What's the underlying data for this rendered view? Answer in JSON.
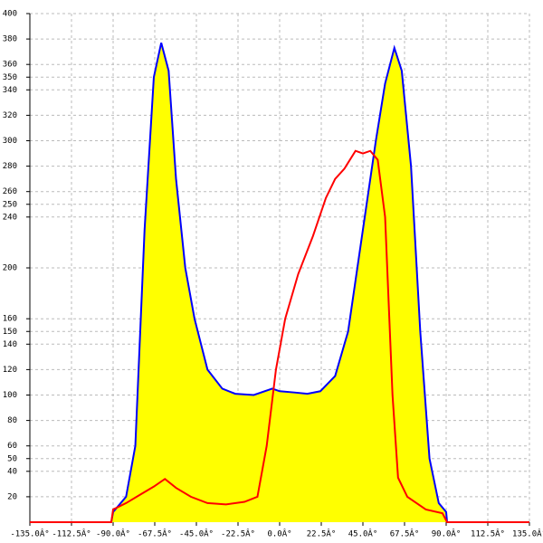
{
  "chart_data": {
    "type": "area",
    "xlim": [
      -135,
      135
    ],
    "ylim": [
      0,
      400
    ],
    "xticks": [
      {
        "value": -135,
        "label": "-135.0Â°"
      },
      {
        "value": -112.5,
        "label": "-112.5Â°"
      },
      {
        "value": -90,
        "label": "-90.0Â°"
      },
      {
        "value": -67.5,
        "label": "-67.5Â°"
      },
      {
        "value": -45,
        "label": "-45.0Â°"
      },
      {
        "value": -22.5,
        "label": "-22.5Â°"
      },
      {
        "value": 0,
        "label": "0.0Â°"
      },
      {
        "value": 22.5,
        "label": "22.5Â°"
      },
      {
        "value": 45,
        "label": "45.0Â°"
      },
      {
        "value": 67.5,
        "label": "67.5Â°"
      },
      {
        "value": 90,
        "label": "90.0Â°"
      },
      {
        "value": 112.5,
        "label": "112.5Â°"
      },
      {
        "value": 135,
        "label": "135.0Â°"
      }
    ],
    "yticks": [
      20,
      40,
      50,
      60,
      80,
      100,
      120,
      140,
      150,
      160,
      200,
      240,
      250,
      260,
      280,
      300,
      320,
      340,
      350,
      360,
      380,
      400
    ],
    "grid": true,
    "series": [
      {
        "color": "#0000ff",
        "fill": "#ffff00",
        "x": [
          -91,
          -90,
          -83,
          -78,
          -73,
          -68,
          -64,
          -60,
          -56,
          -51,
          -46,
          -39,
          -31,
          -24,
          -14,
          -4,
          0,
          8,
          15,
          22,
          30,
          37,
          44,
          52,
          57,
          62,
          66,
          71,
          76,
          81,
          86,
          90,
          90.5
        ],
        "values": [
          0,
          8,
          20,
          60,
          230,
          350,
          377,
          355,
          270,
          200,
          160,
          120,
          105,
          101,
          100,
          105,
          103,
          102,
          101,
          103,
          115,
          150,
          220,
          300,
          345,
          373,
          355,
          280,
          150,
          50,
          15,
          8,
          0
        ]
      },
      {
        "color": "#ff0000",
        "x": [
          -135,
          -91,
          -90,
          -83,
          -75,
          -68,
          -62,
          -56,
          -48,
          -39,
          -29,
          -19,
          -12,
          -7,
          -2,
          3,
          10,
          18,
          25,
          30,
          35,
          41,
          45,
          49,
          53,
          57,
          61,
          64,
          69,
          79,
          88,
          90.5,
          135
        ],
        "values": [
          0,
          0,
          10,
          15,
          22,
          28,
          34,
          27,
          20,
          15,
          14,
          16,
          20,
          60,
          120,
          160,
          195,
          225,
          255,
          270,
          278,
          292,
          290,
          292,
          285,
          240,
          100,
          35,
          20,
          10,
          7,
          0,
          0
        ]
      }
    ]
  }
}
